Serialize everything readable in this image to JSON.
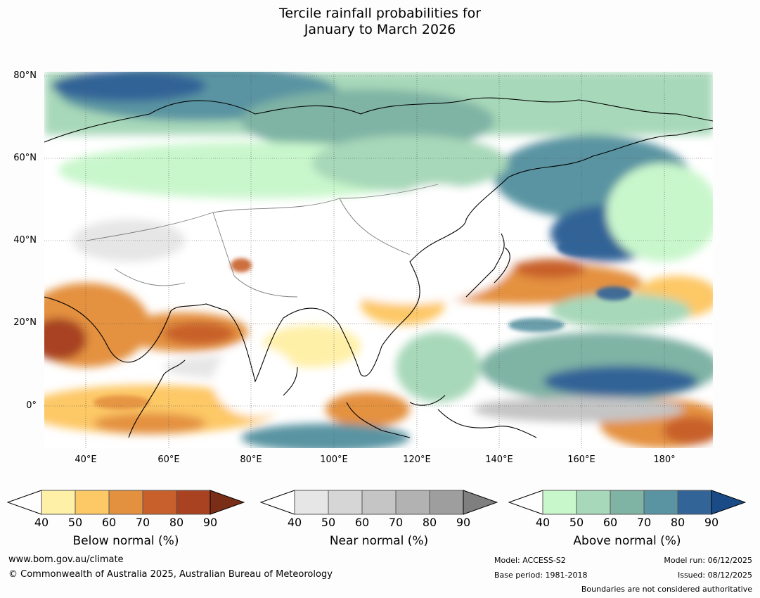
{
  "title": {
    "line1": "Tercile rainfall probabilities for",
    "line2": "January to March 2026"
  },
  "lat_labels": [
    "80°N",
    "60°N",
    "40°N",
    "20°N",
    "0°"
  ],
  "lon_labels": [
    "40°E",
    "60°E",
    "80°E",
    "100°E",
    "120°E",
    "140°E",
    "160°E",
    "180°"
  ],
  "colorbars": [
    {
      "label": "Below normal (%)",
      "ticks": [
        "40",
        "50",
        "60",
        "70",
        "80",
        "90"
      ],
      "colors": [
        "#fff0a8",
        "#fdc866",
        "#e4913f",
        "#c8602b",
        "#a84220",
        "#7a2e18"
      ]
    },
    {
      "label": "Near normal (%)",
      "ticks": [
        "40",
        "50",
        "60",
        "70",
        "80",
        "90"
      ],
      "colors": [
        "#e6e6e6",
        "#d6d6d6",
        "#c5c5c5",
        "#b2b2b2",
        "#9e9e9e",
        "#7f7f7f"
      ]
    },
    {
      "label": "Above normal (%)",
      "ticks": [
        "40",
        "50",
        "60",
        "70",
        "80",
        "90"
      ],
      "colors": [
        "#c9f7cc",
        "#a7d8b9",
        "#7fb3a4",
        "#5a94a2",
        "#336497",
        "#1a4b86"
      ]
    }
  ],
  "footer": {
    "url": "www.bom.gov.au/climate",
    "copyright": "© Commonwealth of Australia 2025, Australian Bureau of Meteorology",
    "model": "Model: ACCESS-S2",
    "base_period": "Base period: 1981-2018",
    "model_run": "Model run: 06/12/2025",
    "issued": "Issued: 08/12/2025",
    "boundaries_note": "Boundaries are not considered authoritative"
  }
}
